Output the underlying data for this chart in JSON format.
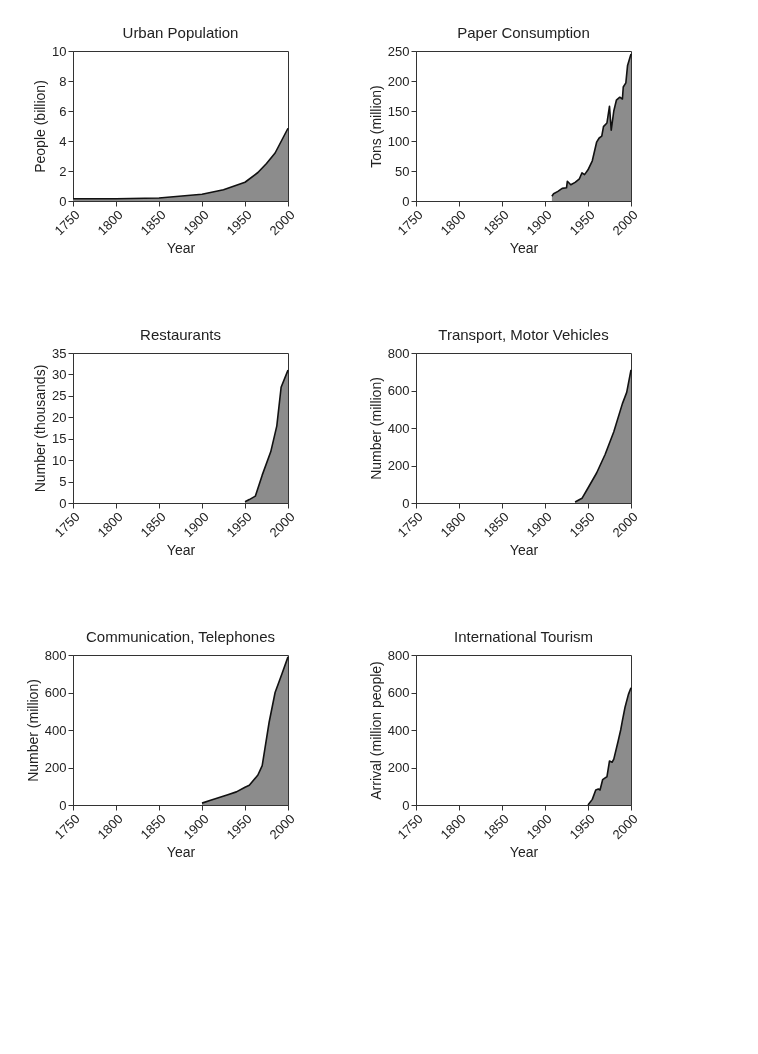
{
  "chart_data": [
    {
      "type": "area",
      "title": "Urban Population",
      "xlabel": "Year",
      "ylabel": "People (billion)",
      "xlim": [
        1750,
        2000
      ],
      "xticks": [
        1750,
        1800,
        1850,
        1900,
        1950,
        2000
      ],
      "ylim": [
        0,
        10
      ],
      "yticks": [
        0,
        2,
        4,
        6,
        8,
        10
      ],
      "series": [
        {
          "color": "#8c8c8c",
          "x": [
            1750,
            1800,
            1850,
            1900,
            1925,
            1950,
            1965,
            1975,
            1985,
            1995,
            2000
          ],
          "values": [
            0.15,
            0.15,
            0.2,
            0.45,
            0.75,
            1.25,
            1.9,
            2.5,
            3.2,
            4.3,
            4.85
          ]
        }
      ]
    },
    {
      "type": "area",
      "title": "Paper Consumption",
      "xlabel": "Year",
      "ylabel": "Tons (million)",
      "xlim": [
        1750,
        2000
      ],
      "xticks": [
        1750,
        1800,
        1850,
        1900,
        1950,
        2000
      ],
      "ylim": [
        0,
        250
      ],
      "yticks": [
        0,
        50,
        100,
        150,
        200,
        250
      ],
      "series": [
        {
          "color": "#8c8c8c",
          "x": [
            1908,
            1910,
            1915,
            1920,
            1925,
            1926,
            1930,
            1935,
            1940,
            1943,
            1946,
            1950,
            1955,
            1960,
            1963,
            1966,
            1968,
            1972,
            1975,
            1977,
            1980,
            1983,
            1987,
            1990,
            1991,
            1994,
            1996,
            2000
          ],
          "values": [
            8,
            12,
            16,
            21,
            22,
            33,
            27,
            31,
            37,
            47,
            44,
            52,
            67,
            98,
            105,
            108,
            124,
            130,
            158,
            118,
            150,
            168,
            173,
            170,
            190,
            197,
            226,
            245
          ]
        }
      ]
    },
    {
      "type": "area",
      "title": "Restaurants",
      "xlabel": "Year",
      "ylabel": "Number (thousands)",
      "xlim": [
        1750,
        2000
      ],
      "xticks": [
        1750,
        1800,
        1850,
        1900,
        1950,
        2000
      ],
      "ylim": [
        0,
        35
      ],
      "yticks": [
        0,
        5,
        10,
        15,
        20,
        25,
        30,
        35
      ],
      "series": [
        {
          "color": "#8c8c8c",
          "x": [
            1950,
            1955,
            1962,
            1970,
            1980,
            1987,
            1992,
            2000
          ],
          "values": [
            0.3,
            0.8,
            1.6,
            6.5,
            12,
            18,
            27,
            31
          ]
        }
      ]
    },
    {
      "type": "area",
      "title": "Transport, Motor Vehicles",
      "xlabel": "Year",
      "ylabel": "Number (million)",
      "xlim": [
        1750,
        2000
      ],
      "xticks": [
        1750,
        1800,
        1850,
        1900,
        1950,
        2000
      ],
      "ylim": [
        0,
        800
      ],
      "yticks": [
        0,
        200,
        400,
        600,
        800
      ],
      "series": [
        {
          "color": "#8c8c8c",
          "x": [
            1935,
            1943,
            1950,
            1960,
            1970,
            1980,
            1990,
            1995,
            2000
          ],
          "values": [
            5,
            25,
            80,
            160,
            260,
            380,
            530,
            590,
            710
          ]
        }
      ]
    },
    {
      "type": "area",
      "title": "Communication, Telephones",
      "xlabel": "Year",
      "ylabel": "Number (million)",
      "xlim": [
        1750,
        2000
      ],
      "xticks": [
        1750,
        1800,
        1850,
        1900,
        1950,
        2000
      ],
      "ylim": [
        0,
        800
      ],
      "yticks": [
        0,
        200,
        400,
        600,
        800
      ],
      "series": [
        {
          "color": "#8c8c8c",
          "x": [
            1900,
            1910,
            1920,
            1930,
            1940,
            1950,
            1955,
            1965,
            1970,
            1978,
            1985,
            1993,
            2000
          ],
          "values": [
            10,
            25,
            40,
            55,
            70,
            95,
            105,
            160,
            210,
            440,
            600,
            700,
            790
          ]
        }
      ]
    },
    {
      "type": "area",
      "title": "International Tourism",
      "xlabel": "Year",
      "ylabel": "Arrival (million people)",
      "xlim": [
        1750,
        2000
      ],
      "xticks": [
        1750,
        1800,
        1850,
        1900,
        1950,
        2000
      ],
      "ylim": [
        0,
        800
      ],
      "yticks": [
        0,
        200,
        400,
        600,
        800
      ],
      "series": [
        {
          "color": "#8c8c8c",
          "x": [
            1950,
            1955,
            1959,
            1962,
            1964,
            1967,
            1970,
            1972,
            1975,
            1978,
            1980,
            1985,
            1988,
            1990,
            1993,
            1997,
            2000
          ],
          "values": [
            0,
            30,
            80,
            85,
            80,
            135,
            145,
            150,
            235,
            228,
            245,
            340,
            400,
            450,
            520,
            590,
            625
          ]
        }
      ]
    }
  ]
}
